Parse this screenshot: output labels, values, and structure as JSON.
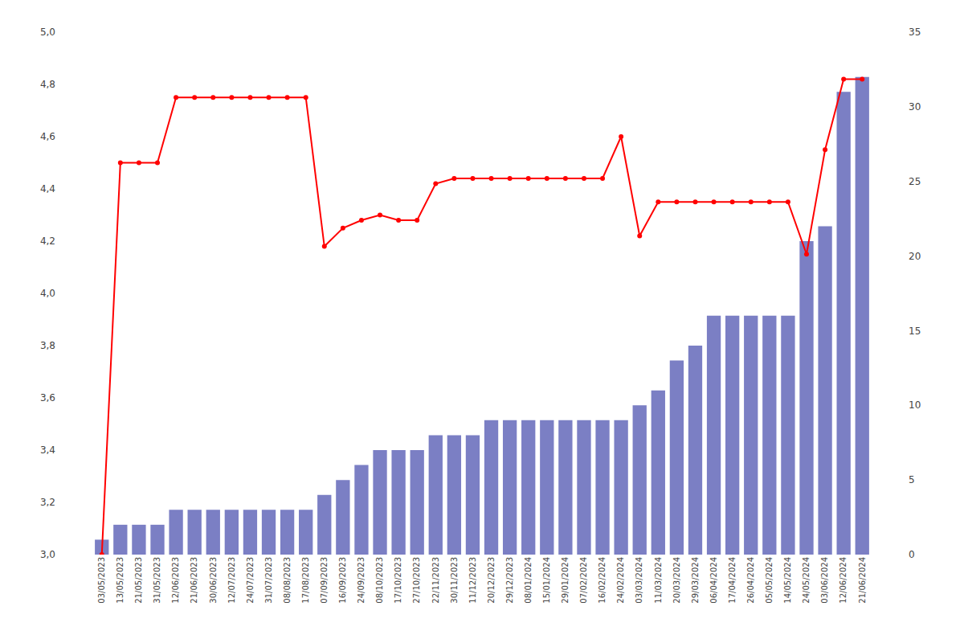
{
  "chart_data": {
    "type": "bar",
    "categories": [
      "03/05/2023",
      "13/05/2023",
      "21/05/2023",
      "31/05/2023",
      "12/06/2023",
      "21/06/2023",
      "30/06/2023",
      "12/07/2023",
      "24/07/2023",
      "31/07/2023",
      "08/08/2023",
      "17/08/2023",
      "07/09/2023",
      "16/09/2023",
      "24/09/2023",
      "08/10/2023",
      "17/10/2023",
      "27/10/2023",
      "22/11/2023",
      "30/11/2023",
      "11/12/2023",
      "20/12/2023",
      "29/12/2023",
      "08/01/2024",
      "15/01/2024",
      "29/01/2024",
      "07/02/2024",
      "16/02/2024",
      "24/02/2024",
      "03/03/2024",
      "11/03/2024",
      "20/03/2024",
      "29/03/2024",
      "06/04/2024",
      "17/04/2024",
      "26/04/2024",
      "05/05/2024",
      "14/05/2024",
      "24/05/2024",
      "03/06/2024",
      "12/06/2024",
      "21/06/2024"
    ],
    "series": [
      {
        "type": "bar",
        "color": "#7b7fc4",
        "axis": "y2",
        "values": [
          1,
          2,
          2,
          2,
          3,
          3,
          3,
          3,
          3,
          3,
          3,
          3,
          4,
          5,
          6,
          7,
          7,
          7,
          8,
          8,
          8,
          9,
          9,
          9,
          9,
          9,
          9,
          9,
          9,
          10,
          11,
          13,
          14,
          16,
          16,
          16,
          16,
          16,
          21,
          22,
          31,
          32
        ]
      },
      {
        "type": "line",
        "color": "#ff0000",
        "marker": "circle",
        "values": [
          3.0,
          4.5,
          4.5,
          4.5,
          4.75,
          4.75,
          4.75,
          4.75,
          4.75,
          4.75,
          4.75,
          4.75,
          4.18,
          4.25,
          4.28,
          4.3,
          4.28,
          4.28,
          4.42,
          4.44,
          4.44,
          4.44,
          4.44,
          4.44,
          4.44,
          4.44,
          4.44,
          4.44,
          4.6,
          4.22,
          4.35,
          4.35,
          4.35,
          4.35,
          4.35,
          4.35,
          4.35,
          4.35,
          4.15,
          4.55,
          4.82,
          4.82
        ]
      }
    ],
    "ylim": [
      3.0,
      5.0
    ],
    "yticks": [
      {
        "value": 3.0,
        "label": "3,0"
      },
      {
        "value": 3.2,
        "label": "3,2"
      },
      {
        "value": 3.4,
        "label": "3,4"
      },
      {
        "value": 3.6,
        "label": "3,6"
      },
      {
        "value": 3.8,
        "label": "3,8"
      },
      {
        "value": 4.0,
        "label": "4,0"
      },
      {
        "value": 4.2,
        "label": "4,2"
      },
      {
        "value": 4.4,
        "label": "4,4"
      },
      {
        "value": 4.6,
        "label": "4,6"
      },
      {
        "value": 4.8,
        "label": "4,8"
      },
      {
        "value": 5.0,
        "label": "5,0"
      }
    ],
    "y2lim": [
      0,
      35
    ],
    "y2ticks": [
      0,
      5,
      10,
      15,
      20,
      25,
      30,
      35
    ],
    "grid": false
  }
}
